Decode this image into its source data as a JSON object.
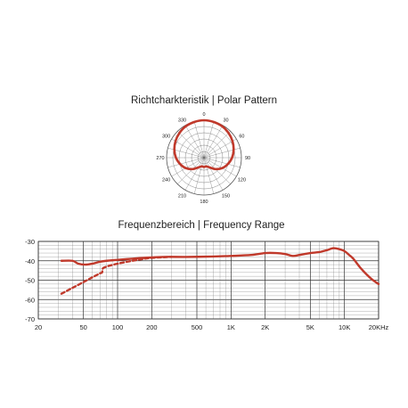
{
  "chart_data": [
    {
      "type": "polar",
      "title": "Richtcharkteristik | Polar Pattern",
      "angle_labels": [
        "0",
        "30",
        "60",
        "90",
        "120",
        "150",
        "180",
        "210",
        "240",
        "270",
        "300",
        "330"
      ],
      "series": [
        {
          "color": "#c0392b",
          "angles_deg": [
            0,
            15,
            30,
            45,
            60,
            75,
            90,
            105,
            120,
            135,
            150,
            165,
            180,
            195,
            210,
            225,
            240,
            255,
            270,
            285,
            300,
            315,
            330,
            345
          ],
          "response": [
            1.0,
            0.99,
            0.97,
            0.93,
            0.88,
            0.82,
            0.75,
            0.66,
            0.56,
            0.43,
            0.3,
            0.24,
            0.25,
            0.24,
            0.3,
            0.43,
            0.56,
            0.66,
            0.75,
            0.82,
            0.88,
            0.93,
            0.97,
            0.99
          ]
        }
      ]
    },
    {
      "type": "line",
      "title": "Frequenzbereich | Frequency Range",
      "x_scale": "log",
      "xlim": [
        20,
        20000
      ],
      "ylim": [
        -70,
        -30
      ],
      "x_ticks": [
        20,
        50,
        100,
        200,
        500,
        1000,
        2000,
        5000,
        10000,
        20000
      ],
      "x_tick_labels": [
        "20",
        "50",
        "100",
        "200",
        "500",
        "1K",
        "2K",
        "5K",
        "10K",
        "20KHz"
      ],
      "y_ticks": [
        -30,
        -40,
        -50,
        -60,
        -70
      ],
      "y_tick_labels": [
        "-30",
        "-40",
        "-50",
        "-60",
        "-70"
      ],
      "grid": true,
      "series": [
        {
          "style": "solid",
          "color": "#c0392b",
          "x": [
            32,
            40,
            45,
            52,
            60,
            70,
            80,
            100,
            130,
            170,
            250,
            400,
            700,
            1000,
            1500,
            2000,
            2500,
            3000,
            3500,
            4000,
            5000,
            6000,
            7000,
            8000,
            9000,
            10000,
            11000,
            12000,
            14000,
            17000,
            20000
          ],
          "y": [
            -40.0,
            -40.0,
            -41.5,
            -42.0,
            -41.5,
            -40.5,
            -40.0,
            -39.5,
            -39.0,
            -38.5,
            -38.0,
            -38.0,
            -37.8,
            -37.5,
            -37.0,
            -36.0,
            -36.0,
            -36.5,
            -37.5,
            -37.0,
            -36.0,
            -35.5,
            -34.5,
            -33.5,
            -34.0,
            -35.0,
            -37.0,
            -39.0,
            -44.0,
            -49.0,
            -52.0
          ]
        },
        {
          "style": "dashed",
          "color": "#c0392b",
          "x": [
            32,
            40,
            50,
            60,
            70,
            73,
            74,
            80,
            100,
            150,
            200,
            300
          ],
          "y": [
            -57.0,
            -54.0,
            -51.0,
            -48.5,
            -46.5,
            -46.0,
            -44.0,
            -43.0,
            -41.5,
            -39.5,
            -38.5,
            -38.0
          ]
        }
      ]
    }
  ]
}
